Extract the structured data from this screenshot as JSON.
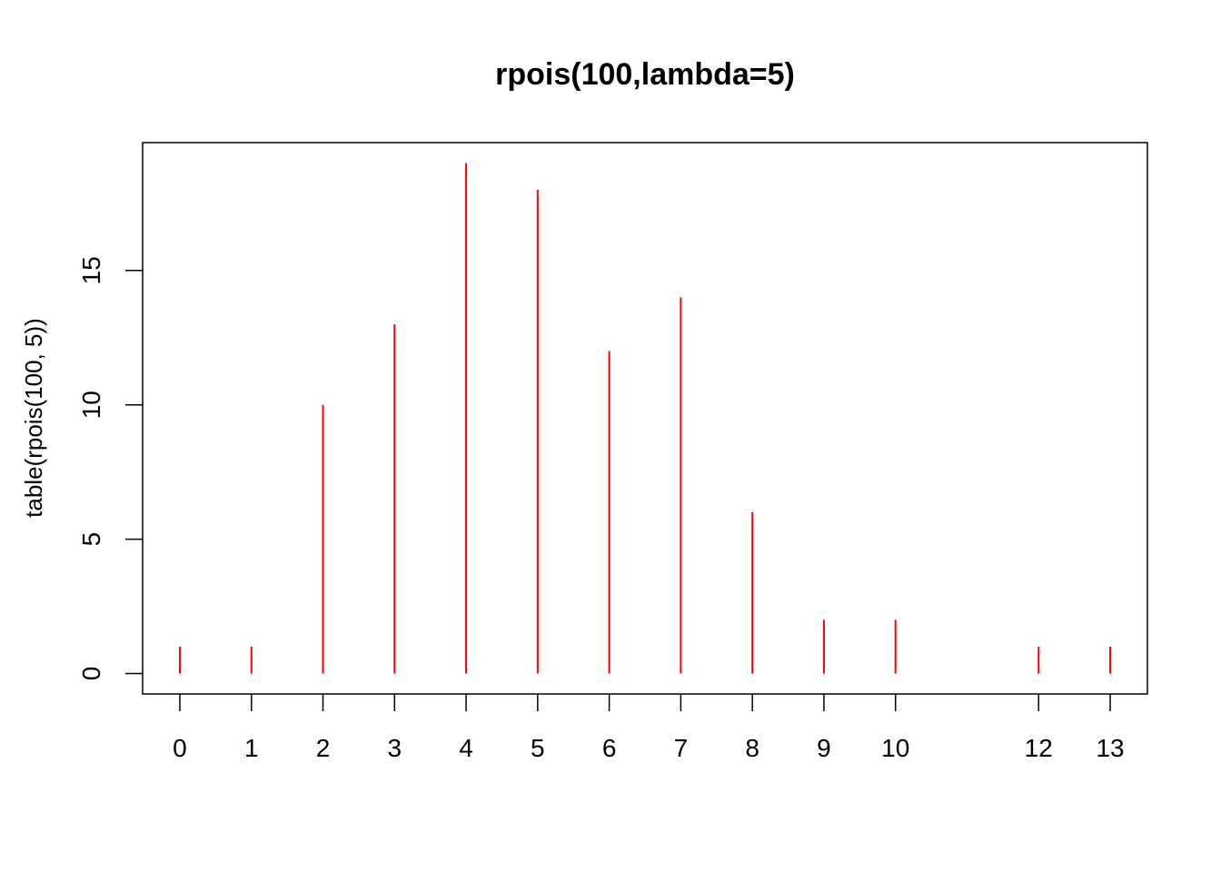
{
  "chart_data": {
    "type": "bar",
    "style": "histogram-lines",
    "title": "rpois(100,lambda=5)",
    "xlabel": "",
    "ylabel": "table(rpois(100, 5))",
    "x": [
      0,
      1,
      2,
      3,
      4,
      5,
      6,
      7,
      8,
      9,
      10,
      12,
      13
    ],
    "x_tick_labels": [
      "0",
      "1",
      "2",
      "3",
      "4",
      "5",
      "6",
      "7",
      "8",
      "9",
      "10",
      "12",
      "13"
    ],
    "values": [
      1,
      1,
      10,
      13,
      19,
      18,
      12,
      14,
      6,
      2,
      2,
      1,
      1
    ],
    "y_ticks": [
      0,
      5,
      10,
      15
    ],
    "y_tick_labels": [
      "0",
      "5",
      "10",
      "15"
    ],
    "xlim": [
      -0.52,
      13.52
    ],
    "ylim": [
      -0.76,
      19.76
    ],
    "grid": false,
    "bar_color": "#FF0000",
    "axis_color": "#000000"
  }
}
